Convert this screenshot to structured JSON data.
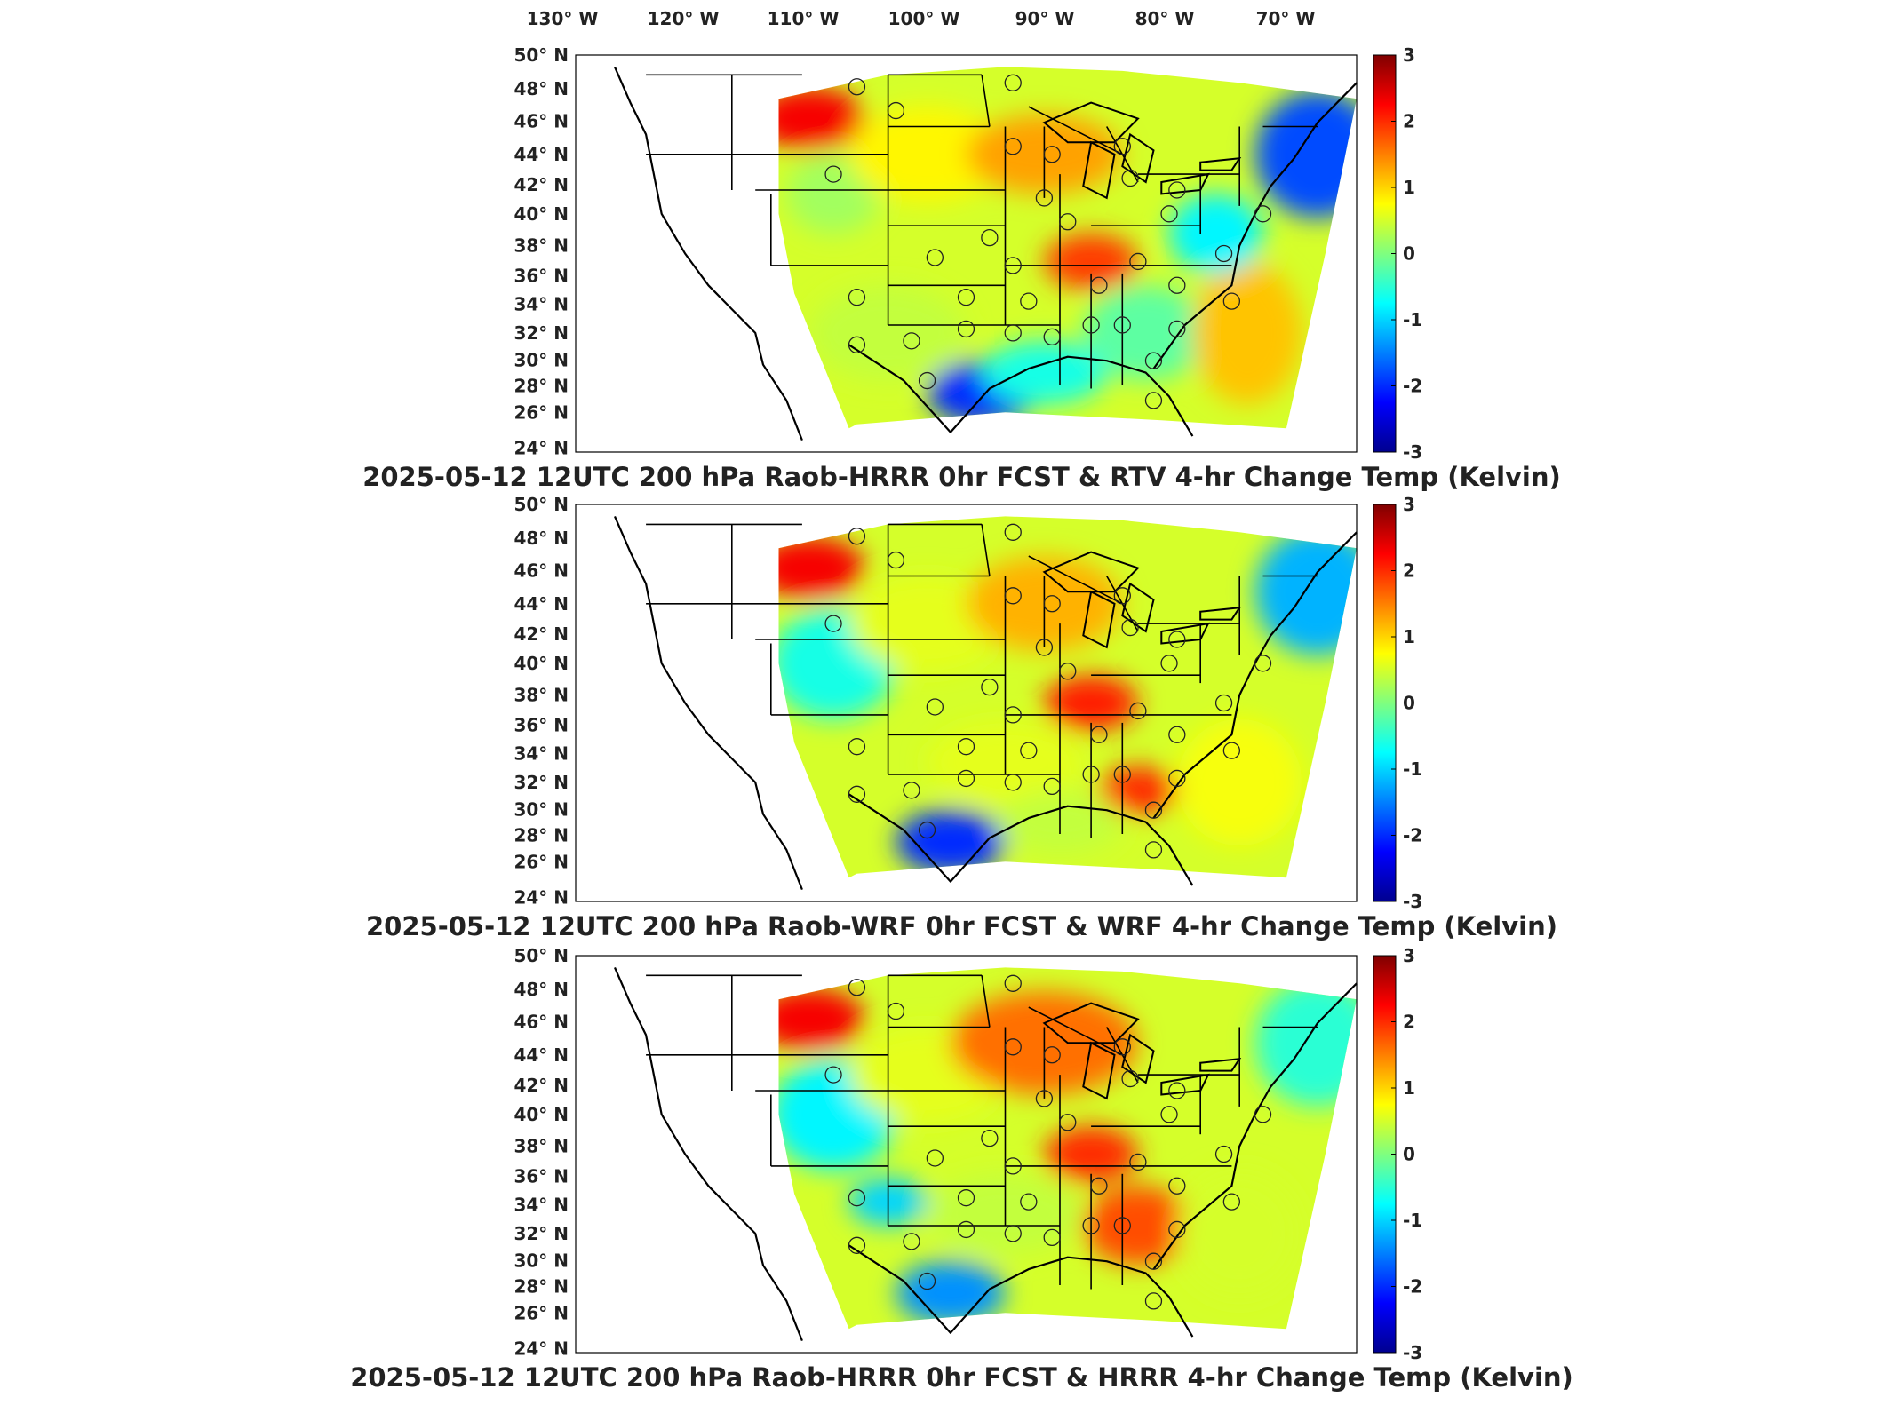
{
  "lon_labels": [
    {
      "deg": "130",
      "hemi": "W"
    },
    {
      "deg": "120",
      "hemi": "W"
    },
    {
      "deg": "110",
      "hemi": "W"
    },
    {
      "deg": "100",
      "hemi": "W"
    },
    {
      "deg": "90",
      "hemi": "W"
    },
    {
      "deg": "80",
      "hemi": "W"
    },
    {
      "deg": "70",
      "hemi": "W"
    }
  ],
  "lat_labels": [
    {
      "deg": "50",
      "hemi": "N"
    },
    {
      "deg": "48",
      "hemi": "N"
    },
    {
      "deg": "46",
      "hemi": "N"
    },
    {
      "deg": "44",
      "hemi": "N"
    },
    {
      "deg": "42",
      "hemi": "N"
    },
    {
      "deg": "40",
      "hemi": "N"
    },
    {
      "deg": "38",
      "hemi": "N"
    },
    {
      "deg": "36",
      "hemi": "N"
    },
    {
      "deg": "34",
      "hemi": "N"
    },
    {
      "deg": "32",
      "hemi": "N"
    },
    {
      "deg": "30",
      "hemi": "N"
    },
    {
      "deg": "28",
      "hemi": "N"
    },
    {
      "deg": "26",
      "hemi": "N"
    },
    {
      "deg": "24",
      "hemi": "N"
    }
  ],
  "colorbar": {
    "ticks": [
      "3",
      "2",
      "1",
      "0",
      "-1",
      "-2",
      "-3"
    ],
    "min": -3,
    "max": 3
  },
  "panels": [
    {
      "title": "2025-05-12 12UTC 200 hPa Raob-HRRR 0hr FCST & RTV 4-hr Change Temp (Kelvin)"
    },
    {
      "title": "2025-05-12 12UTC 200 hPa Raob-WRF 0hr FCST & WRF 4-hr Change Temp (Kelvin)"
    },
    {
      "title": "2025-05-12 12UTC 200 hPa Raob-HRRR 0hr FCST & HRRR 4-hr Change Temp (Kelvin)"
    }
  ],
  "colors": {
    "background": "#ffffff",
    "outline": "#000000",
    "label": "#222222"
  },
  "colormap": "jet"
}
